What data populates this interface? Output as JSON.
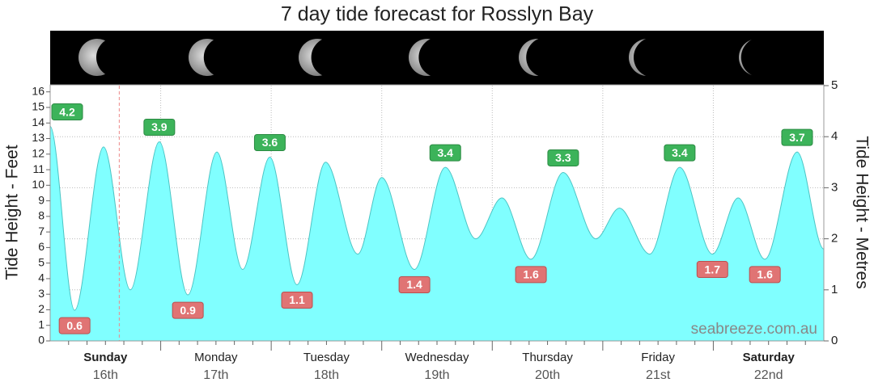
{
  "chart_data": {
    "type": "area",
    "title": "7 day tide forecast for Rosslyn Bay",
    "ylabel": "Tide Height - Feet",
    "y2label": "Tide Height - Metres",
    "watermark": "seabreeze.com.au",
    "categories": [
      "Sunday",
      "Monday",
      "Tuesday",
      "Wednesday",
      "Thursday",
      "Friday",
      "Saturday"
    ],
    "dates": [
      "16th",
      "17th",
      "18th",
      "19th",
      "20th",
      "21st",
      "22nd"
    ],
    "weekend": [
      true,
      false,
      false,
      false,
      false,
      false,
      true
    ],
    "xlim": [
      0,
      168
    ],
    "xticks": [
      24,
      48,
      72,
      96,
      120,
      144
    ],
    "xminorticks": [
      4,
      8,
      12,
      16,
      20,
      28,
      32,
      36,
      40,
      44,
      52,
      56,
      60,
      64,
      68,
      76,
      80,
      84,
      88,
      92,
      100,
      104,
      108,
      112,
      116,
      124,
      128,
      132,
      136,
      140,
      148,
      152,
      156,
      160,
      164
    ],
    "current_time": 15,
    "ylim": [
      0,
      16.4
    ],
    "yticks": [
      0,
      1,
      2,
      3,
      4,
      5,
      6,
      7,
      8,
      9,
      10,
      11,
      12,
      13,
      14,
      15,
      16
    ],
    "y2lim": [
      0,
      5
    ],
    "y2ticks": [
      0,
      1,
      2,
      3,
      4,
      5
    ],
    "grid": true,
    "series": [
      {
        "name": "Tide",
        "axis": "y2",
        "color": "#80ffff",
        "line_color": "#4cc4c4",
        "x": [
          0,
          5.3,
          11.6,
          17.4,
          23.7,
          29.9,
          36.2,
          41.8,
          47.7,
          53.6,
          59.8,
          66.8,
          72,
          79.1,
          85.8,
          92.4,
          98.1,
          104.4,
          111.4,
          118.5,
          123.6,
          130.2,
          136.7,
          143.8,
          149.4,
          155.2,
          162.2,
          168
        ],
        "values": [
          4.2,
          0.6,
          3.8,
          1.0,
          3.9,
          0.9,
          3.7,
          1.4,
          3.6,
          1.1,
          3.5,
          1.7,
          3.2,
          1.4,
          3.4,
          2.0,
          2.8,
          1.6,
          3.3,
          2.0,
          2.6,
          1.7,
          3.4,
          1.7,
          2.8,
          1.6,
          3.7,
          1.8
        ],
        "value_labels": [
          "4.2",
          "0.6",
          null,
          null,
          "3.9",
          "0.9",
          null,
          null,
          "3.6",
          "1.1",
          null,
          null,
          null,
          "1.4",
          "3.4",
          null,
          null,
          "1.6",
          "3.3",
          null,
          null,
          null,
          "3.4",
          "1.7",
          null,
          "1.6",
          "3.7",
          null
        ]
      }
    ]
  }
}
